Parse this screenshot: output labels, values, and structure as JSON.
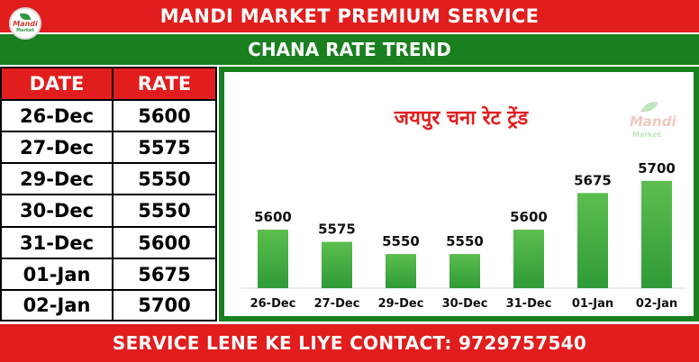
{
  "header": {
    "title": "MANDI MARKET PREMIUM SERVICE",
    "subtitle": "CHANA RATE TREND",
    "logo_text": "Mandi",
    "logo_subtext": "Market"
  },
  "table": {
    "headers": [
      "DATE",
      "RATE"
    ],
    "rows": [
      [
        "26-Dec",
        "5600"
      ],
      [
        "27-Dec",
        "5575"
      ],
      [
        "29-Dec",
        "5550"
      ],
      [
        "30-Dec",
        "5550"
      ],
      [
        "31-Dec",
        "5600"
      ],
      [
        "01-Jan",
        "5675"
      ],
      [
        "02-Jan",
        "5700"
      ]
    ]
  },
  "chart_data": {
    "type": "bar",
    "title": "जयपुर चना रेट ट्रेंड",
    "categories": [
      "26-Dec",
      "27-Dec",
      "29-Dec",
      "30-Dec",
      "31-Dec",
      "01-Jan",
      "02-Jan"
    ],
    "values": [
      5600,
      5575,
      5550,
      5550,
      5600,
      5675,
      5700
    ],
    "ylim": [
      5480,
      5720
    ],
    "xlabel": "",
    "ylabel": "",
    "grid": false,
    "bar_color": "#3fa63f",
    "watermark": "Mandi Market"
  },
  "footer": {
    "text": "SERVICE LENE KE LIYE CONTACT: 9729757540"
  },
  "colors": {
    "red": "#e11d1d",
    "green": "#1a7f1f"
  }
}
